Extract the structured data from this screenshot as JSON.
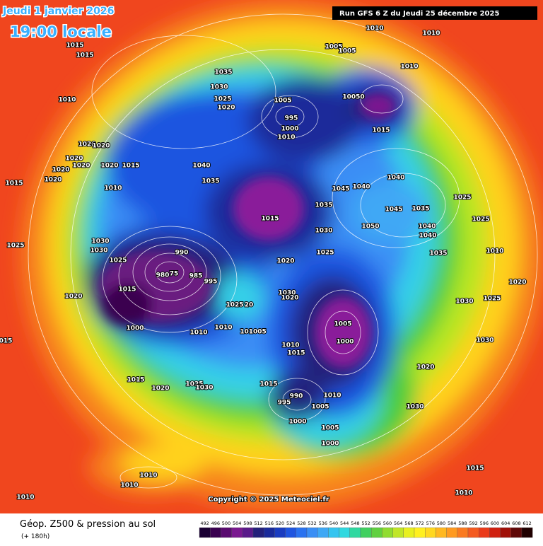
{
  "header": {
    "date": "Jeudi 1 janvier 2026",
    "time": "19:00 locale",
    "run": "Run GFS 6 Z du Jeudi 25 décembre 2025"
  },
  "copyright": "Copyright © 2025 Meteociel.fr",
  "footer": {
    "title": "Géop. Z500 & pression au sol",
    "lead": "(+ 180h)"
  },
  "colorbar": {
    "labels": [
      492,
      496,
      500,
      504,
      508,
      512,
      516,
      520,
      524,
      528,
      532,
      536,
      540,
      544,
      548,
      552,
      556,
      560,
      564,
      568,
      572,
      576,
      580,
      584,
      588,
      592,
      596,
      600,
      604,
      608,
      612
    ],
    "colors": [
      "#1a0033",
      "#3a0050",
      "#5a0a70",
      "#7a1890",
      "#5a1a8a",
      "#24207a",
      "#1a2a9a",
      "#1a3cc0",
      "#1f55e0",
      "#2a72f0",
      "#3a8ef5",
      "#3fa8f5",
      "#35c4f0",
      "#30d8e0",
      "#30d8a0",
      "#40d060",
      "#60d040",
      "#90dc30",
      "#c0e628",
      "#e8f020",
      "#fff020",
      "#ffd820",
      "#ffb820",
      "#ff9a20",
      "#fa7a20",
      "#f45a20",
      "#ea3a1a",
      "#d02010",
      "#a01008",
      "#600808",
      "#200000"
    ]
  },
  "pressure_labels": [
    "1010",
    "1010",
    "1015",
    "1015",
    "1005",
    "1005",
    "1010",
    "1010",
    "1035",
    "1030",
    "1025",
    "1020",
    "1005",
    "995",
    "1000",
    "1010",
    "10050",
    "1015",
    "1020",
    "1020",
    "1020",
    "1020",
    "1020",
    "1020",
    "1015",
    "1020",
    "1015",
    "1010",
    "1040",
    "1035",
    "1040",
    "1045",
    "1040",
    "1035",
    "1025",
    "1045",
    "1035",
    "1025",
    "1015",
    "1030",
    "1050",
    "1040",
    "1040",
    "1025",
    "1030",
    "1030",
    "990",
    "1025",
    "1035",
    "1010",
    "1025",
    "1020",
    "980",
    "75",
    "985",
    "995",
    "1020",
    "1015",
    "1020",
    "1030",
    "1020",
    "1030",
    "1025",
    "1005",
    "1000",
    "1000",
    "1010",
    "101005",
    "1010",
    "1010",
    "1015",
    "1030",
    "1020",
    "1015",
    "1020",
    "1025",
    "1030",
    "1015",
    "990",
    "995",
    "1010",
    "1005",
    "1030",
    "1000",
    "1005",
    "1000",
    "1015",
    "1010",
    "1010",
    "1010",
    "1010",
    "015",
    "1025",
    "20"
  ]
}
